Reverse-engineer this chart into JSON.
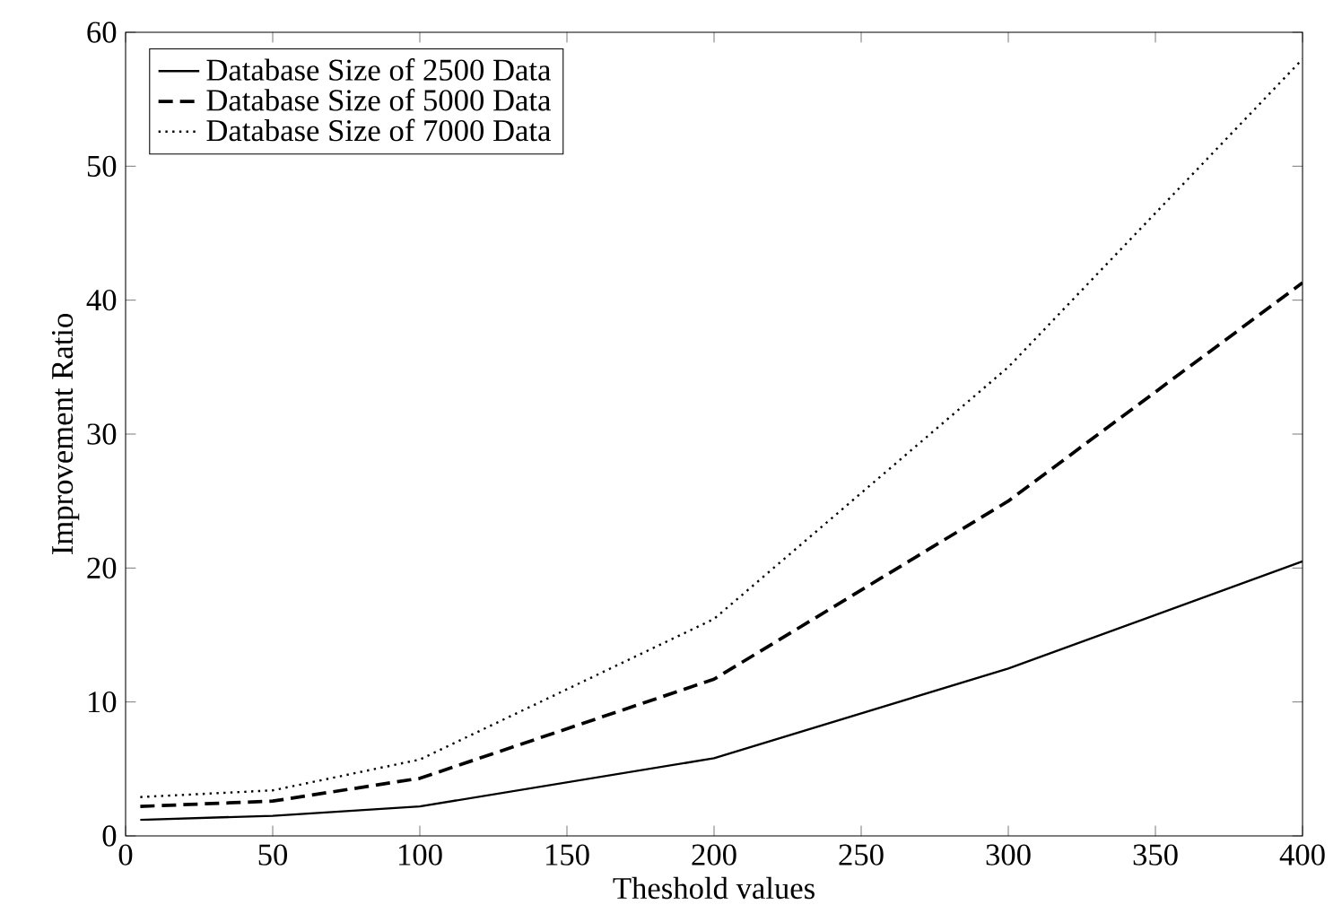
{
  "chart_data": {
    "type": "line",
    "xlabel": "Theshold values",
    "ylabel": "Improvement Ratio",
    "x": [
      5,
      50,
      100,
      200,
      300,
      400
    ],
    "series": [
      {
        "name": "Database Size of 2500 Data",
        "color": "#000000",
        "line_style": "solid",
        "values": [
          1.2,
          1.5,
          2.2,
          5.8,
          12.5,
          20.5
        ]
      },
      {
        "name": "Database Size of 5000 Data",
        "color": "#000000",
        "line_style": "dashed",
        "values": [
          2.2,
          2.6,
          4.3,
          11.7,
          25,
          41.3
        ]
      },
      {
        "name": "Database Size of 7000 Data",
        "color": "#000000",
        "line_style": "dotted",
        "values": [
          2.9,
          3.4,
          5.7,
          16.2,
          35,
          58
        ]
      }
    ],
    "xlim": [
      0,
      400
    ],
    "ylim": [
      0,
      60
    ],
    "xticks": [
      0,
      50,
      100,
      150,
      200,
      250,
      300,
      350,
      400
    ],
    "yticks": [
      0,
      10,
      20,
      30,
      40,
      50,
      60
    ],
    "grid": false,
    "legend": "top left",
    "marker": "none"
  }
}
